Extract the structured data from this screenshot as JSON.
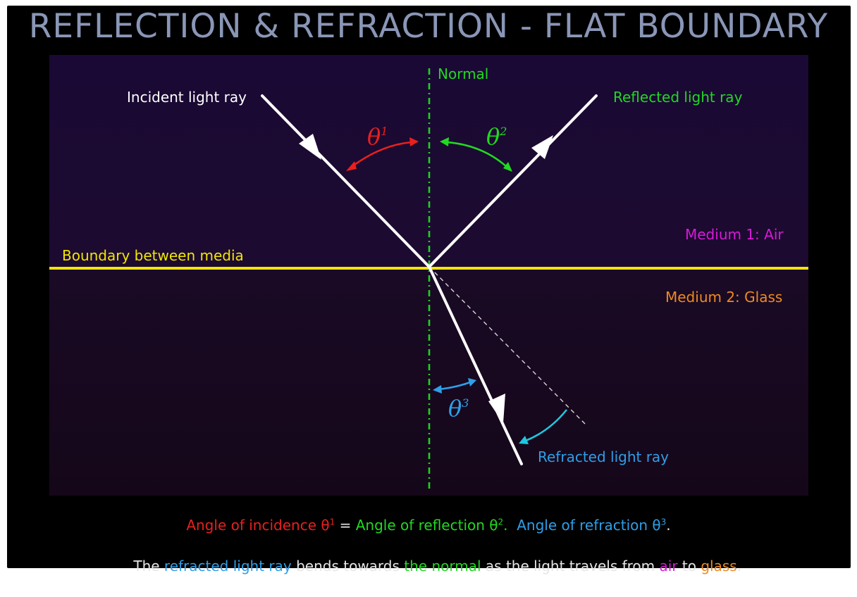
{
  "title": "REFLECTION & REFRACTION - FLAT BOUNDARY",
  "labels": {
    "normal": "Normal",
    "incident": "Incident light ray",
    "reflected": "Reflected light ray",
    "refracted": "Refracted light ray",
    "boundary": "Boundary between media",
    "medium1": "Medium 1: Air",
    "medium2": "Medium 2: Glass"
  },
  "angles": {
    "theta": "θ",
    "incidence_sub": "1",
    "reflection_sub": "2",
    "refraction_sub": "3"
  },
  "caption": {
    "line1": {
      "incidence": "Angle of incidence θ",
      "incidence_sup": "1",
      "equals": " = ",
      "reflection": "Angle of reflection θ",
      "reflection_sup": "2",
      "sep": ".  ",
      "refraction": "Angle of refraction θ",
      "refraction_sup": "3",
      "end": "."
    },
    "line2": {
      "p1": "The ",
      "refracted": "refracted light ray",
      "p2": " bends towards ",
      "normal": "the normal",
      "p3": " as the light travels from ",
      "air": "air",
      "p4": " to ",
      "glass": "glass",
      "p5": "."
    }
  },
  "colors": {
    "background_frame": "#000000",
    "panel_top": "#1b0a33",
    "panel_bottom": "#170821",
    "title": "#8a96b6",
    "normal_line": "#1fd11f",
    "boundary": "#f2e600",
    "ray": "#ffffff",
    "incidence": "#e8201e",
    "reflection": "#22d822",
    "refraction": "#2e9fe8",
    "refraction_arc": "#1ec8e0",
    "medium1": "#d81ad8",
    "medium2": "#f08a1e",
    "caption_text": "#e6e6e6"
  }
}
